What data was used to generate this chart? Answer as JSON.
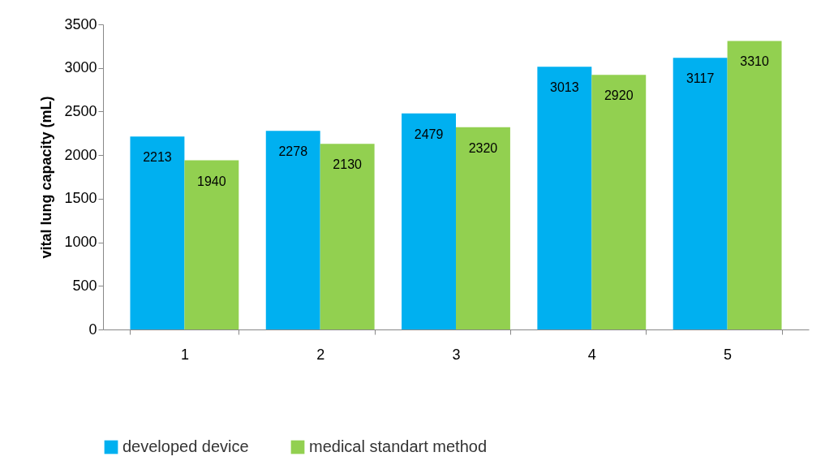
{
  "chart_data": {
    "type": "bar",
    "ylabel": "vital lung capacity (mL)",
    "categories": [
      "1",
      "2",
      "3",
      "4",
      "5"
    ],
    "series": [
      {
        "name": "developed device",
        "color": "#00b0f0",
        "values": [
          2213,
          2278,
          2479,
          3013,
          3117
        ]
      },
      {
        "name": "medical standart method",
        "color": "#92d050",
        "values": [
          1940,
          2130,
          2320,
          2920,
          3310
        ]
      }
    ],
    "ylim": [
      0,
      3500
    ],
    "yticks": [
      0,
      500,
      1000,
      1500,
      2000,
      2500,
      3000,
      3500
    ],
    "data_labels": true,
    "legend": "bottom",
    "grid": false
  }
}
